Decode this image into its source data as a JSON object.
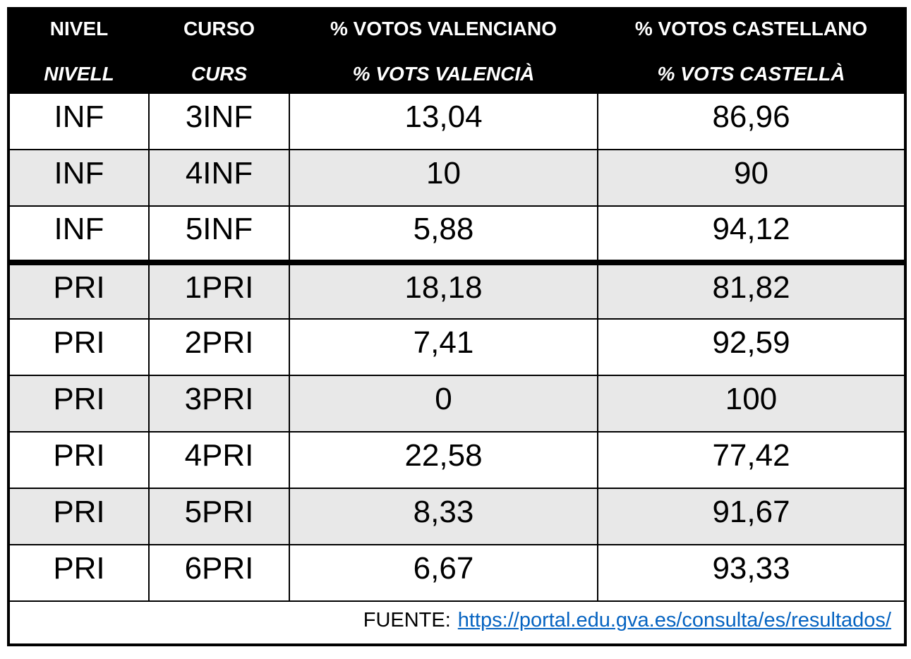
{
  "header": {
    "columns": [
      {
        "line1": "NIVEL",
        "line2": "NIVELL"
      },
      {
        "line1": "CURSO",
        "line2": "CURS"
      },
      {
        "line1": "% VOTOS VALENCIANO",
        "line2": "% VOTS VALENCIÀ"
      },
      {
        "line1": "% VOTOS CASTELLANO",
        "line2": "% VOTS CASTELLÀ"
      }
    ]
  },
  "rows": [
    {
      "nivel": "INF",
      "curso": "3INF",
      "valenciano": "13,04",
      "castellano": "86,96"
    },
    {
      "nivel": "INF",
      "curso": "4INF",
      "valenciano": "10",
      "castellano": "90"
    },
    {
      "nivel": "INF",
      "curso": "5INF",
      "valenciano": "5,88",
      "castellano": "94,12"
    },
    {
      "nivel": "PRI",
      "curso": "1PRI",
      "valenciano": "18,18",
      "castellano": "81,82"
    },
    {
      "nivel": "PRI",
      "curso": "2PRI",
      "valenciano": "7,41",
      "castellano": "92,59"
    },
    {
      "nivel": "PRI",
      "curso": "3PRI",
      "valenciano": "0",
      "castellano": "100"
    },
    {
      "nivel": "PRI",
      "curso": "4PRI",
      "valenciano": "22,58",
      "castellano": "77,42"
    },
    {
      "nivel": "PRI",
      "curso": "5PRI",
      "valenciano": "8,33",
      "castellano": "91,67"
    },
    {
      "nivel": "PRI",
      "curso": "6PRI",
      "valenciano": "6,67",
      "castellano": "93,33"
    }
  ],
  "footer": {
    "label": "FUENTE:",
    "link_text": "https://portal.edu.gva.es/consulta/es/resultados/"
  },
  "colors": {
    "header_bg": "#000000",
    "header_text": "#ffffff",
    "row_alt_bg": "#e8e8e8",
    "border": "#000000",
    "link": "#0563C1"
  }
}
